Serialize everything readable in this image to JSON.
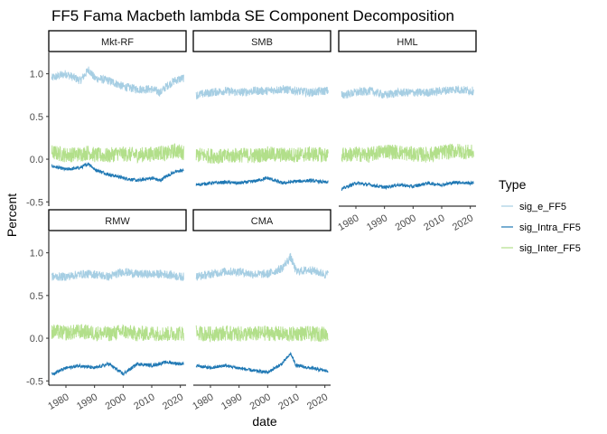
{
  "chart_data": {
    "type": "line",
    "title": "FF5 Fama Macbeth lambda SE Component Decomposition",
    "xlabel": "date",
    "ylabel": "Percent",
    "xlim": [
      1974,
      2022
    ],
    "ylim": [
      -0.55,
      1.25
    ],
    "x_ticks": [
      1980,
      1990,
      2000,
      2010,
      2020
    ],
    "y_ticks": [
      -0.5,
      0.0,
      0.5,
      1.0
    ],
    "y_tick_labels": [
      "-0.5",
      "0.0",
      "0.5",
      "1.0"
    ],
    "legend": {
      "title": "Type",
      "position": "right",
      "entries": [
        "sig_e_FF5",
        "sig_Intra_FF5",
        "sig_Inter_FF5"
      ]
    },
    "series_style": [
      {
        "name": "sig_e_FF5",
        "color": "#a6cee3"
      },
      {
        "name": "sig_Intra_FF5",
        "color": "#1f78b4"
      },
      {
        "name": "sig_Inter_FF5",
        "color": "#b2df8a"
      }
    ],
    "panels": [
      {
        "label": "Mkt-RF",
        "series": [
          {
            "name": "sig_e_FF5",
            "x": [
              1975,
              1980,
              1985,
              1988,
              1990,
              1995,
              1998,
              2000,
              2005,
              2010,
              2013,
              2015,
              2018,
              2021
            ],
            "y": [
              0.95,
              1.0,
              0.92,
              1.05,
              0.95,
              0.92,
              0.88,
              0.85,
              0.82,
              0.82,
              0.78,
              0.85,
              0.92,
              0.95
            ]
          },
          {
            "name": "sig_Intra_FF5",
            "x": [
              1975,
              1980,
              1985,
              1988,
              1990,
              1995,
              1998,
              2000,
              2005,
              2010,
              2013,
              2015,
              2018,
              2021
            ],
            "y": [
              -0.08,
              -0.12,
              -0.1,
              -0.05,
              -0.12,
              -0.18,
              -0.2,
              -0.22,
              -0.25,
              -0.22,
              -0.25,
              -0.2,
              -0.15,
              -0.13
            ]
          },
          {
            "name": "sig_Inter_FF5",
            "x": [
              1975,
              1980,
              1985,
              1988,
              1990,
              1995,
              1998,
              2000,
              2005,
              2010,
              2013,
              2015,
              2018,
              2021
            ],
            "y": [
              0.08,
              0.05,
              0.06,
              0.08,
              0.05,
              0.04,
              0.07,
              0.06,
              0.05,
              0.06,
              0.08,
              0.06,
              0.1,
              0.08
            ]
          }
        ]
      },
      {
        "label": "SMB",
        "series": [
          {
            "name": "sig_e_FF5",
            "x": [
              1975,
              1980,
              1985,
              1990,
              1995,
              2000,
              2005,
              2010,
              2015,
              2020
            ],
            "y": [
              0.75,
              0.78,
              0.8,
              0.78,
              0.8,
              0.8,
              0.82,
              0.8,
              0.78,
              0.8
            ]
          },
          {
            "name": "sig_Intra_FF5",
            "x": [
              1975,
              1980,
              1985,
              1990,
              1995,
              2000,
              2005,
              2010,
              2015,
              2020
            ],
            "y": [
              -0.3,
              -0.28,
              -0.27,
              -0.28,
              -0.26,
              -0.22,
              -0.28,
              -0.26,
              -0.25,
              -0.27
            ]
          },
          {
            "name": "sig_Inter_FF5",
            "x": [
              1975,
              1980,
              1985,
              1990,
              1995,
              2000,
              2005,
              2010,
              2015,
              2020
            ],
            "y": [
              0.05,
              0.04,
              0.03,
              0.05,
              0.04,
              0.06,
              0.05,
              0.05,
              0.06,
              0.05
            ]
          }
        ]
      },
      {
        "label": "HML",
        "series": [
          {
            "name": "sig_e_FF5",
            "x": [
              1975,
              1980,
              1985,
              1990,
              1995,
              2000,
              2005,
              2010,
              2015,
              2020
            ],
            "y": [
              0.75,
              0.78,
              0.8,
              0.75,
              0.78,
              0.78,
              0.78,
              0.8,
              0.82,
              0.8
            ]
          },
          {
            "name": "sig_Intra_FF5",
            "x": [
              1975,
              1980,
              1985,
              1990,
              1995,
              2000,
              2005,
              2010,
              2015,
              2020
            ],
            "y": [
              -0.35,
              -0.28,
              -0.3,
              -0.33,
              -0.3,
              -0.32,
              -0.28,
              -0.3,
              -0.27,
              -0.28
            ]
          },
          {
            "name": "sig_Inter_FF5",
            "x": [
              1975,
              1980,
              1985,
              1990,
              1995,
              2000,
              2005,
              2010,
              2015,
              2020
            ],
            "y": [
              0.05,
              0.06,
              0.05,
              0.1,
              0.08,
              0.06,
              0.05,
              0.08,
              0.1,
              0.08
            ]
          }
        ]
      },
      {
        "label": "RMW",
        "series": [
          {
            "name": "sig_e_FF5",
            "x": [
              1975,
              1980,
              1985,
              1990,
              1995,
              2000,
              2005,
              2010,
              2015,
              2020
            ],
            "y": [
              0.72,
              0.72,
              0.75,
              0.75,
              0.72,
              0.78,
              0.75,
              0.75,
              0.75,
              0.72
            ]
          },
          {
            "name": "sig_Intra_FF5",
            "x": [
              1975,
              1980,
              1985,
              1990,
              1995,
              2000,
              2005,
              2010,
              2015,
              2020
            ],
            "y": [
              -0.42,
              -0.35,
              -0.32,
              -0.35,
              -0.3,
              -0.42,
              -0.3,
              -0.32,
              -0.28,
              -0.3
            ]
          },
          {
            "name": "sig_Inter_FF5",
            "x": [
              1975,
              1980,
              1985,
              1990,
              1995,
              2000,
              2005,
              2010,
              2015,
              2020
            ],
            "y": [
              0.08,
              0.06,
              0.08,
              0.06,
              0.05,
              0.08,
              0.05,
              0.06,
              0.05,
              0.06
            ]
          }
        ]
      },
      {
        "label": "CMA",
        "series": [
          {
            "name": "sig_e_FF5",
            "x": [
              1975,
              1980,
              1985,
              1990,
              1995,
              2000,
              2005,
              2008,
              2010,
              2015,
              2020
            ],
            "y": [
              0.72,
              0.75,
              0.78,
              0.78,
              0.75,
              0.75,
              0.82,
              0.95,
              0.78,
              0.8,
              0.75
            ]
          },
          {
            "name": "sig_Intra_FF5",
            "x": [
              1975,
              1980,
              1985,
              1990,
              1995,
              2000,
              2005,
              2008,
              2010,
              2015,
              2020
            ],
            "y": [
              -0.32,
              -0.35,
              -0.32,
              -0.35,
              -0.38,
              -0.4,
              -0.3,
              -0.18,
              -0.32,
              -0.35,
              -0.38
            ]
          },
          {
            "name": "sig_Inter_FF5",
            "x": [
              1975,
              1980,
              1985,
              1990,
              1995,
              2000,
              2005,
              2008,
              2010,
              2015,
              2020
            ],
            "y": [
              0.06,
              0.05,
              0.06,
              0.05,
              0.05,
              0.06,
              0.05,
              0.04,
              0.06,
              0.05,
              0.05
            ]
          }
        ]
      }
    ]
  }
}
